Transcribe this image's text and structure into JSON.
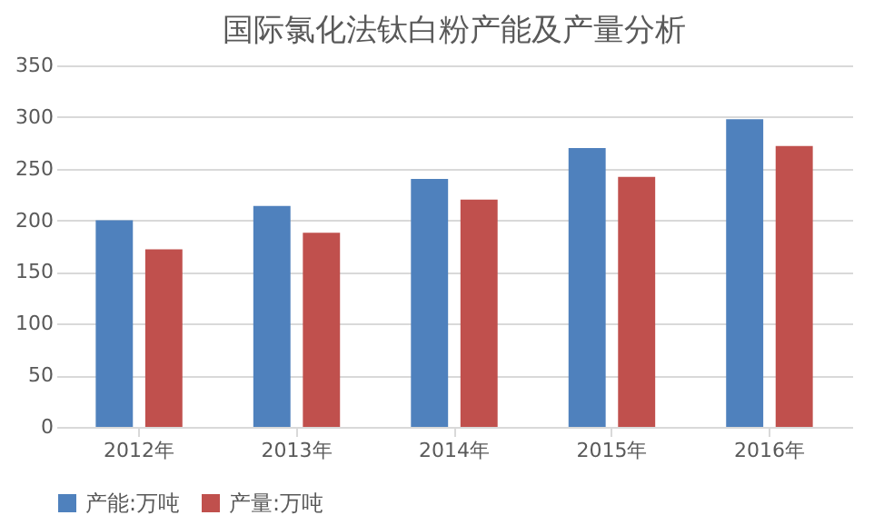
{
  "chart_data": {
    "type": "bar",
    "title": "国际氯化法钛白粉产能及产量分析",
    "categories": [
      "2012年",
      "2013年",
      "2014年",
      "2015年",
      "2016年"
    ],
    "series": [
      {
        "name": "产能:万吨",
        "color": "#4f81bd",
        "values": [
          200,
          214,
          240,
          270,
          298
        ]
      },
      {
        "name": "产量:万吨",
        "color": "#c0504d",
        "values": [
          172,
          188,
          220,
          242,
          272
        ]
      }
    ],
    "ylim": [
      0,
      350
    ],
    "yticks": [
      0,
      50,
      100,
      150,
      200,
      250,
      300,
      350
    ],
    "grid": "y",
    "legend": "bottom"
  }
}
